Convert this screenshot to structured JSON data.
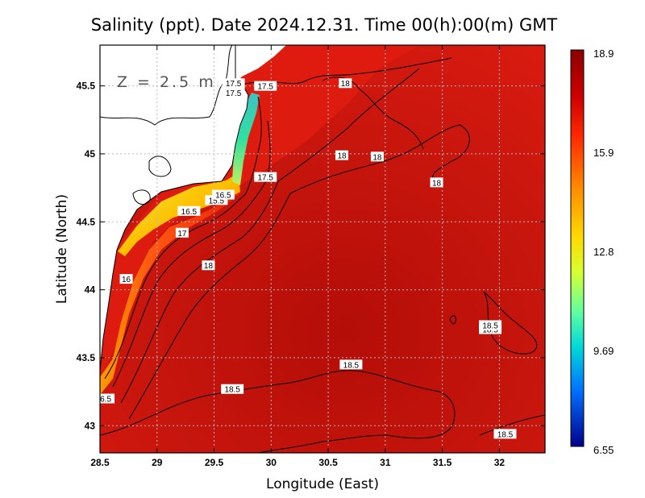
{
  "title": "Salinity (ppt). Date 2024.12.31. Time 00(h):00(m) GMT",
  "depth_label": "Z = 2.5 m",
  "x_axis": {
    "label": "Longitude (East)",
    "range": [
      28.5,
      32.4
    ],
    "ticks": [
      {
        "value": 28.5,
        "label": "28.5"
      },
      {
        "value": 29,
        "label": "29"
      },
      {
        "value": 29.5,
        "label": "29.5"
      },
      {
        "value": 30,
        "label": "30"
      },
      {
        "value": 30.5,
        "label": "30.5"
      },
      {
        "value": 31,
        "label": "31"
      },
      {
        "value": 31.5,
        "label": "31.5"
      },
      {
        "value": 32,
        "label": "32"
      }
    ]
  },
  "y_axis": {
    "label": "Latitude (North)",
    "range": [
      42.8,
      45.8
    ],
    "ticks": [
      {
        "value": 43,
        "label": "43"
      },
      {
        "value": 43.5,
        "label": "43.5"
      },
      {
        "value": 44,
        "label": "44"
      },
      {
        "value": 44.5,
        "label": "44.5"
      },
      {
        "value": 45,
        "label": "45"
      },
      {
        "value": 45.5,
        "label": "45.5"
      }
    ]
  },
  "colorbar": {
    "min": 6.55,
    "max": 18.9,
    "labels": [
      "18.9",
      "15.9",
      "12.8",
      "9.69",
      "6.55"
    ],
    "colors": [
      "#8b0000",
      "#e8140a",
      "#ff8c00",
      "#ffff00",
      "#7fff7f",
      "#00c8c8",
      "#0064ff",
      "#0000a0"
    ]
  },
  "contour_labels": [
    {
      "text": "17.5",
      "lon": 29.67,
      "lat": 45.52
    },
    {
      "text": "17.5",
      "lon": 29.67,
      "lat": 45.45
    },
    {
      "text": "17.5",
      "lon": 29.95,
      "lat": 45.5
    },
    {
      "text": "18",
      "lon": 30.65,
      "lat": 45.52
    },
    {
      "text": "18",
      "lon": 30.62,
      "lat": 44.99
    },
    {
      "text": "18",
      "lon": 30.93,
      "lat": 44.98
    },
    {
      "text": "18",
      "lon": 31.45,
      "lat": 44.79
    },
    {
      "text": "17.5",
      "lon": 29.95,
      "lat": 44.83
    },
    {
      "text": "15.5",
      "lon": 29.52,
      "lat": 44.66
    },
    {
      "text": "16.5",
      "lon": 29.58,
      "lat": 44.7
    },
    {
      "text": "16.5",
      "lon": 29.28,
      "lat": 44.58
    },
    {
      "text": "17",
      "lon": 29.22,
      "lat": 44.42
    },
    {
      "text": "18",
      "lon": 29.45,
      "lat": 44.18
    },
    {
      "text": "16",
      "lon": 28.73,
      "lat": 44.08
    },
    {
      "text": "18.5",
      "lon": 31.92,
      "lat": 43.71
    },
    {
      "text": "18.5",
      "lon": 31.92,
      "lat": 43.74
    },
    {
      "text": "18.5",
      "lon": 30.7,
      "lat": 43.45
    },
    {
      "text": "18.5",
      "lon": 29.66,
      "lat": 43.27
    },
    {
      "text": "18.5",
      "lon": 32.05,
      "lat": 42.94
    },
    {
      "text": "6.5",
      "lon": 28.55,
      "lat": 43.2
    }
  ]
}
